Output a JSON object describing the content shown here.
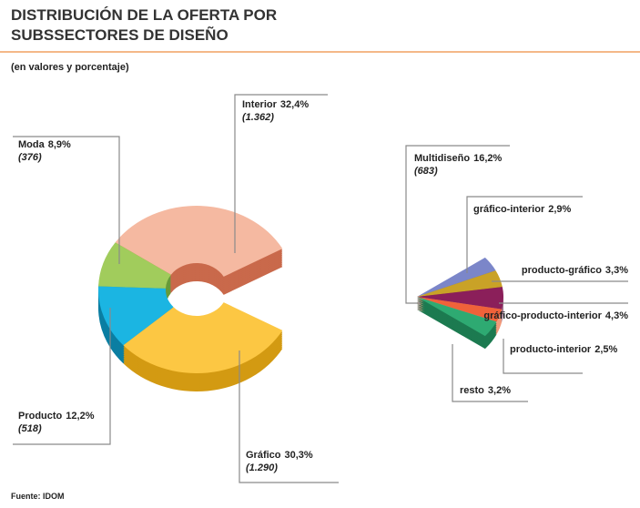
{
  "chart_data": {
    "type": "pie",
    "title": [
      "DISTRIBUCIÓN DE LA OFERTA POR",
      "SUBSSECTORES DE DISEÑO"
    ],
    "subtitle": "(en valores y porcentaje)",
    "source": "Fuente: IDOM",
    "slices": [
      {
        "name": "Interior",
        "value": 32.4,
        "value_label": "32,4%",
        "count": 1362,
        "count_label": "(1.362)",
        "color": "#f5b9a1",
        "side_color": "#c9694b"
      },
      {
        "name": "Moda",
        "value": 8.9,
        "value_label": "8,9%",
        "count": 376,
        "count_label": "(376)",
        "color": "#a1cc5c",
        "side_color": "#679a3a"
      },
      {
        "name": "Producto",
        "value": 12.2,
        "value_label": "12,2%",
        "count": 518,
        "count_label": "(518)",
        "color": "#1bb5e2",
        "side_color": "#0b7ea2"
      },
      {
        "name": "Gráfico",
        "value": 30.3,
        "value_label": "30,3%",
        "count": 1290,
        "count_label": "(1.290)",
        "color": "#fcc743",
        "side_color": "#d39a12"
      },
      {
        "name": "Multidiseño",
        "value": 16.2,
        "value_label": "16,2%",
        "count": 683,
        "count_label": "(683)",
        "breakout": true
      }
    ],
    "breakout": [
      {
        "name": "gráfico-interior",
        "value": 2.9,
        "value_label": "2,9%",
        "color": "#7b86c9",
        "side_color": "#535da0"
      },
      {
        "name": "producto-gráfico",
        "value": 3.3,
        "value_label": "3,3%",
        "color": "#c9a227",
        "side_color": "#96780f"
      },
      {
        "name": "gráfico-producto-interior",
        "value": 4.3,
        "value_label": "4,3%",
        "color": "#8b1f5a",
        "side_color": "#a07890"
      },
      {
        "name": "producto-interior",
        "value": 2.5,
        "value_label": "2,5%",
        "color": "#f0623a",
        "side_color": "#f29a7a"
      },
      {
        "name": "resto",
        "value": 3.2,
        "value_label": "3,2%",
        "color": "#2eaa72",
        "side_color": "#1c7a50"
      }
    ]
  }
}
